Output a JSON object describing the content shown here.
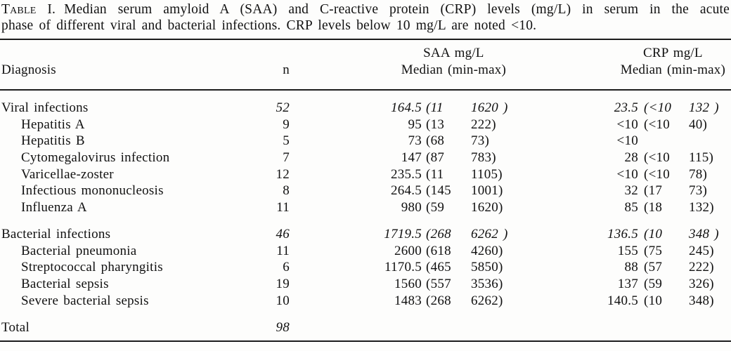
{
  "caption": {
    "label": "Table I.",
    "line1_rest": "Median serum amyloid A (SAA) and C-reactive protein (CRP) levels (mg/L) in serum in the acute",
    "line2": "phase of different viral and bacterial infections. CRP levels below 10 mg/L are noted <10."
  },
  "header": {
    "diagnosis": "Diagnosis",
    "n": "n",
    "saa_title": "SAA mg/L",
    "saa_sub": "Median (min-max)",
    "crp_title": "CRP mg/L",
    "crp_sub": "Median (min-max)"
  },
  "table": {
    "rows": [
      {
        "label": "Viral infections",
        "indent": false,
        "italic": true,
        "section_start": false,
        "total": false,
        "n": "52",
        "saa_median": "164.5",
        "saa_min": "(11",
        "saa_max": "1620 )",
        "crp_median": "23.5",
        "crp_min": "(<10",
        "crp_max": "132 )"
      },
      {
        "label": "Hepatitis A",
        "indent": true,
        "italic": false,
        "section_start": false,
        "total": false,
        "n": "9",
        "saa_median": "95",
        "saa_min": "(13",
        "saa_max": "222)",
        "crp_median": "<10",
        "crp_min": "(<10",
        "crp_max": "40)"
      },
      {
        "label": "Hepatitis B",
        "indent": true,
        "italic": false,
        "section_start": false,
        "total": false,
        "n": "5",
        "saa_median": "73",
        "saa_min": "(68",
        "saa_max": "73)",
        "crp_median": "<10",
        "crp_min": "",
        "crp_max": ""
      },
      {
        "label": "Cytomegalovirus infection",
        "indent": true,
        "italic": false,
        "section_start": false,
        "total": false,
        "n": "7",
        "saa_median": "147",
        "saa_min": "(87",
        "saa_max": "783)",
        "crp_median": "28",
        "crp_min": "(<10",
        "crp_max": "115)"
      },
      {
        "label": "Varicellae-zoster",
        "indent": true,
        "italic": false,
        "section_start": false,
        "total": false,
        "n": "12",
        "saa_median": "235.5",
        "saa_min": "(11",
        "saa_max": "1105)",
        "crp_median": "<10",
        "crp_min": "(<10",
        "crp_max": "78)"
      },
      {
        "label": "Infectious mononucleosis",
        "indent": true,
        "italic": false,
        "section_start": false,
        "total": false,
        "n": "8",
        "saa_median": "264.5",
        "saa_min": "(145",
        "saa_max": "1001)",
        "crp_median": "32",
        "crp_min": "(17",
        "crp_max": "73)"
      },
      {
        "label": "Influenza A",
        "indent": true,
        "italic": false,
        "section_start": false,
        "total": false,
        "n": "11",
        "saa_median": "980",
        "saa_min": "(59",
        "saa_max": "1620)",
        "crp_median": "85",
        "crp_min": "(18",
        "crp_max": "132)"
      },
      {
        "label": "Bacterial infections",
        "indent": false,
        "italic": true,
        "section_start": true,
        "total": false,
        "n": "46",
        "saa_median": "1719.5",
        "saa_min": "(268",
        "saa_max": "6262 )",
        "crp_median": "136.5",
        "crp_min": "(10",
        "crp_max": "348 )"
      },
      {
        "label": "Bacterial pneumonia",
        "indent": true,
        "italic": false,
        "section_start": false,
        "total": false,
        "n": "11",
        "saa_median": "2600",
        "saa_min": "(618",
        "saa_max": "4260)",
        "crp_median": "155",
        "crp_min": "(75",
        "crp_max": "245)"
      },
      {
        "label": "Streptococcal pharyngitis",
        "indent": true,
        "italic": false,
        "section_start": false,
        "total": false,
        "n": "6",
        "saa_median": "1170.5",
        "saa_min": "(465",
        "saa_max": "5850)",
        "crp_median": "88",
        "crp_min": "(57",
        "crp_max": "222)"
      },
      {
        "label": "Bacterial sepsis",
        "indent": true,
        "italic": false,
        "section_start": false,
        "total": false,
        "n": "19",
        "saa_median": "1560",
        "saa_min": "(557",
        "saa_max": "3536)",
        "crp_median": "137",
        "crp_min": "(59",
        "crp_max": "326)"
      },
      {
        "label": "Severe bacterial sepsis",
        "indent": true,
        "italic": false,
        "section_start": false,
        "total": false,
        "n": "10",
        "saa_median": "1483",
        "saa_min": "(268",
        "saa_max": "6262)",
        "crp_median": "140.5",
        "crp_min": "(10",
        "crp_max": "348)"
      },
      {
        "label": "Total",
        "indent": false,
        "italic": true,
        "section_start": false,
        "total": true,
        "n": "98",
        "saa_median": "",
        "saa_min": "",
        "saa_max": "",
        "crp_median": "",
        "crp_min": "",
        "crp_max": ""
      }
    ]
  }
}
